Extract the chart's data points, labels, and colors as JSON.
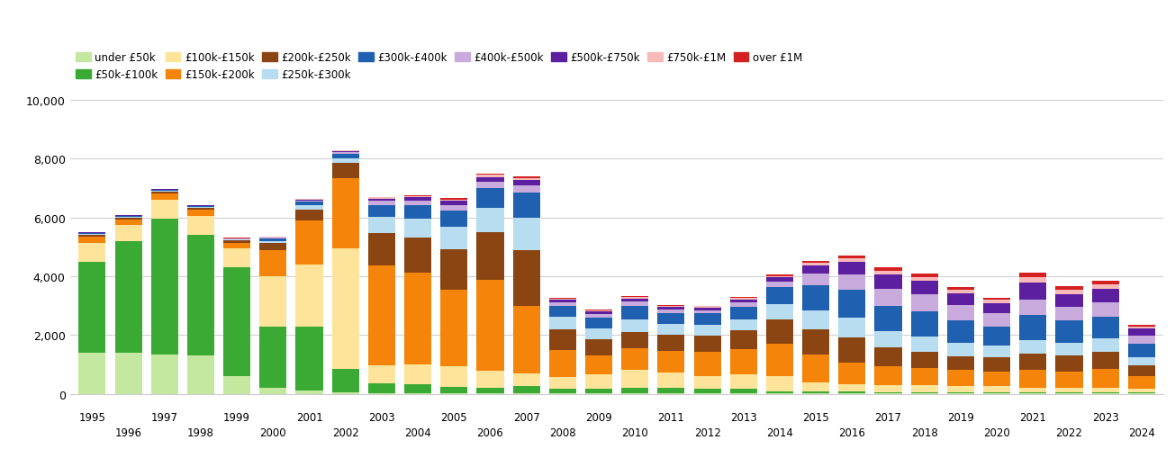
{
  "years": [
    1995,
    1996,
    1997,
    1998,
    1999,
    2000,
    2001,
    2002,
    2003,
    2004,
    2005,
    2006,
    2007,
    2008,
    2009,
    2010,
    2011,
    2012,
    2013,
    2014,
    2015,
    2016,
    2017,
    2018,
    2019,
    2020,
    2021,
    2022,
    2023,
    2024
  ],
  "categories": [
    "under £50k",
    "£50k-£100k",
    "£100k-£150k",
    "£150k-£200k",
    "£200k-£250k",
    "£250k-£300k",
    "£300k-£400k",
    "£400k-£500k",
    "£500k-£750k",
    "£750k-£1M",
    "over £1M"
  ],
  "colors": [
    "#c5e8a0",
    "#3aaa35",
    "#fde49a",
    "#f5850a",
    "#8b4513",
    "#b8ddf0",
    "#2060b0",
    "#c8aadc",
    "#5b1fa0",
    "#f7baba",
    "#d42020"
  ],
  "data": {
    "under £50k": [
      1400,
      1400,
      1350,
      1300,
      600,
      200,
      100,
      50,
      10,
      10,
      10,
      10,
      10,
      10,
      10,
      10,
      10,
      10,
      10,
      10,
      10,
      10,
      10,
      10,
      10,
      10,
      10,
      10,
      10,
      10
    ],
    "£50k-£100k": [
      3100,
      3800,
      4600,
      4100,
      3700,
      2100,
      2200,
      800,
      350,
      300,
      220,
      180,
      250,
      150,
      150,
      200,
      200,
      150,
      150,
      80,
      70,
      60,
      50,
      50,
      40,
      50,
      40,
      40,
      40,
      30
    ],
    "£100k-£150k": [
      650,
      550,
      650,
      650,
      650,
      1700,
      2100,
      4100,
      600,
      700,
      700,
      600,
      430,
      420,
      500,
      600,
      500,
      450,
      500,
      500,
      300,
      250,
      220,
      220,
      200,
      200,
      160,
      160,
      160,
      120
    ],
    "£150k-£200k": [
      200,
      180,
      220,
      220,
      200,
      900,
      1500,
      2400,
      3400,
      3100,
      2600,
      3100,
      2300,
      900,
      650,
      750,
      750,
      830,
      850,
      1100,
      950,
      750,
      650,
      600,
      550,
      500,
      600,
      550,
      650,
      450
    ],
    "£200k-£250k": [
      70,
      70,
      70,
      70,
      70,
      220,
      380,
      500,
      1100,
      1200,
      1400,
      1600,
      1900,
      700,
      550,
      550,
      550,
      550,
      650,
      850,
      850,
      850,
      650,
      560,
      480,
      470,
      560,
      560,
      560,
      370
    ],
    "£250k-£300k": [
      25,
      25,
      25,
      25,
      25,
      90,
      140,
      180,
      550,
      650,
      750,
      850,
      1100,
      450,
      370,
      420,
      370,
      370,
      380,
      520,
      660,
      660,
      560,
      510,
      460,
      420,
      460,
      420,
      460,
      270
    ],
    "£300k-£400k": [
      25,
      25,
      25,
      25,
      25,
      70,
      110,
      130,
      420,
      460,
      560,
      650,
      850,
      370,
      370,
      460,
      370,
      370,
      420,
      560,
      860,
      960,
      860,
      860,
      750,
      650,
      860,
      750,
      750,
      460
    ],
    "£400k-£500k": [
      15,
      15,
      15,
      15,
      15,
      25,
      45,
      55,
      130,
      160,
      180,
      230,
      250,
      110,
      110,
      140,
      120,
      120,
      140,
      190,
      380,
      520,
      570,
      570,
      520,
      430,
      520,
      470,
      470,
      270
    ],
    "£500k-£750k": [
      12,
      12,
      12,
      12,
      12,
      22,
      35,
      45,
      90,
      110,
      140,
      165,
      185,
      90,
      90,
      110,
      90,
      90,
      110,
      150,
      280,
      430,
      480,
      460,
      410,
      360,
      570,
      430,
      480,
      240
    ],
    "£750k-£1M": [
      4,
      4,
      4,
      4,
      4,
      8,
      12,
      18,
      35,
      45,
      55,
      65,
      75,
      35,
      35,
      45,
      35,
      35,
      45,
      55,
      95,
      135,
      145,
      145,
      125,
      105,
      190,
      145,
      145,
      75
    ],
    "over £1M": [
      4,
      4,
      4,
      4,
      4,
      8,
      12,
      18,
      25,
      35,
      45,
      55,
      65,
      25,
      25,
      35,
      25,
      25,
      35,
      45,
      75,
      95,
      115,
      105,
      95,
      85,
      155,
      115,
      125,
      55
    ]
  },
  "ylim": [
    0,
    10000
  ],
  "yticks": [
    0,
    2000,
    4000,
    6000,
    8000,
    10000
  ],
  "background_color": "#ffffff",
  "grid_color": "#d0d0d0"
}
